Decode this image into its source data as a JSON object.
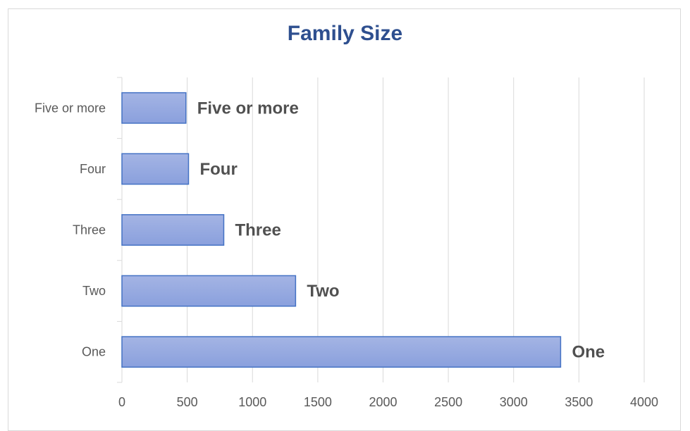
{
  "chart_data": {
    "type": "bar",
    "orientation": "horizontal",
    "title": "Family Size",
    "xlabel": "",
    "ylabel": "",
    "categories": [
      "One",
      "Two",
      "Three",
      "Four",
      "Five or more"
    ],
    "values": [
      3360,
      1330,
      780,
      510,
      490
    ],
    "data_labels": [
      "One",
      "Two",
      "Three",
      "Four",
      "Five or more"
    ],
    "category_tick_labels": [
      "One",
      "Two",
      "Three",
      "Four",
      "Five or more"
    ],
    "x_ticks": [
      0,
      500,
      1000,
      1500,
      2000,
      2500,
      3000,
      3500,
      4000
    ],
    "xlim": [
      0,
      4000
    ],
    "grid": true,
    "legend": "none",
    "colors": {
      "bar_fill_top": "#a4b4e4",
      "bar_fill_bottom": "#8aa0dd",
      "bar_stroke": "#4472c4",
      "grid": "#d9d9d9",
      "title": "#2e4f8f",
      "tick_text": "#595959",
      "data_label_text": "#505050"
    }
  }
}
